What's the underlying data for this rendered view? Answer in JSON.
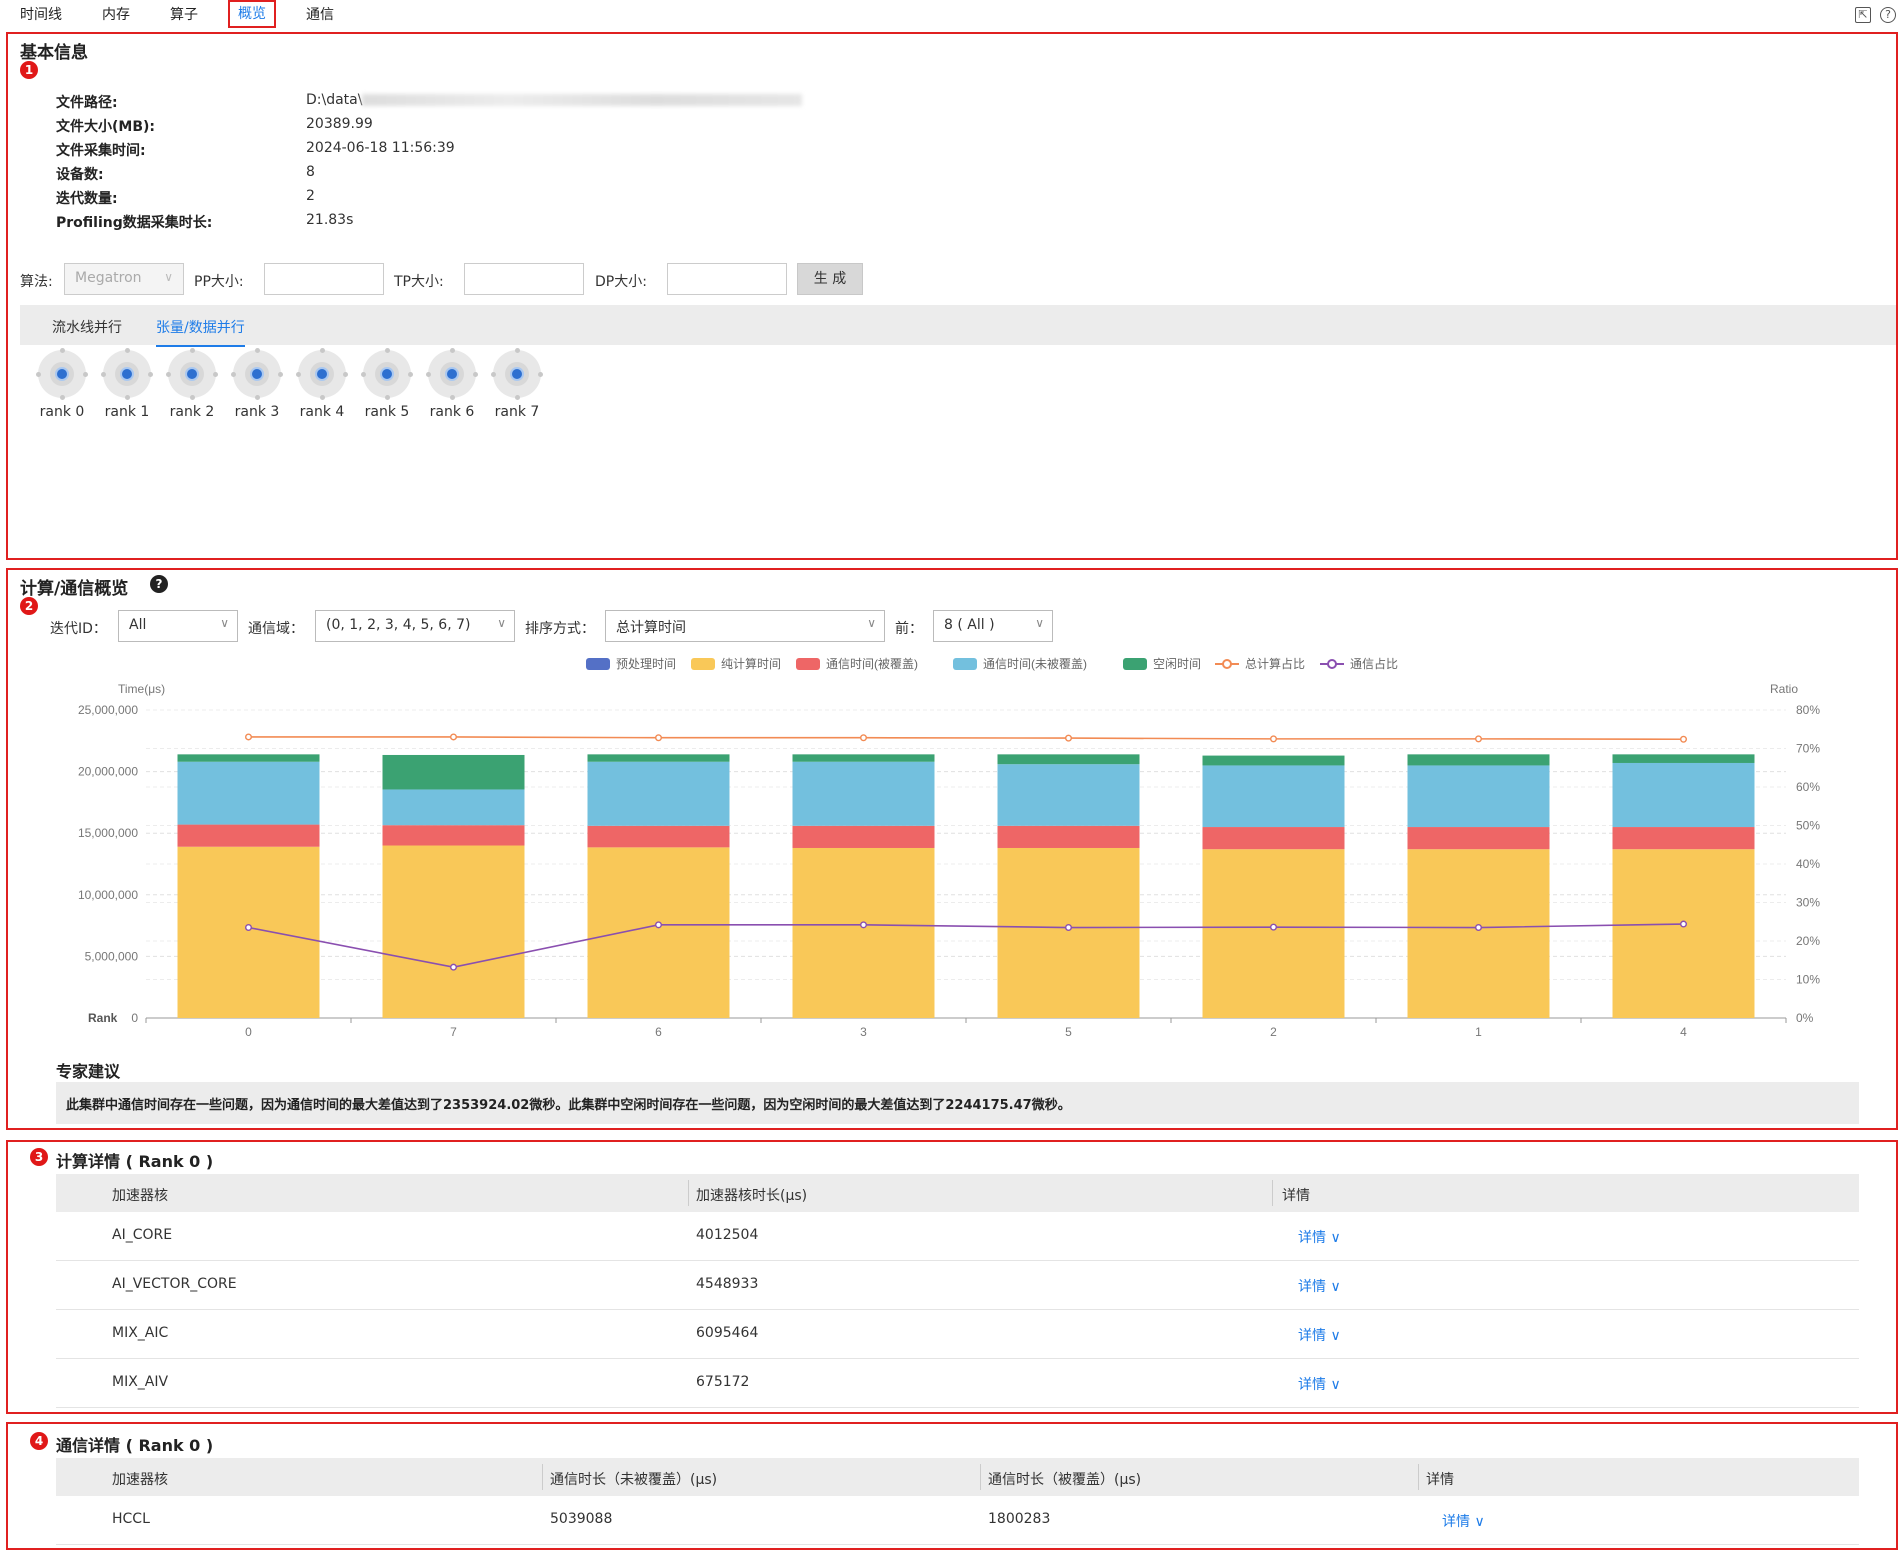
{
  "tabs": [
    "时间线",
    "内存",
    "算子",
    "概览",
    "通信"
  ],
  "active_tab": "概览",
  "icons": {
    "export": "export-icon",
    "help": "help-icon"
  },
  "section1": {
    "badge": "1",
    "title": "基本信息",
    "info": [
      {
        "label": "文件路径:",
        "value": "D:\\data\\"
      },
      {
        "label": "文件大小(MB):",
        "value": "20389.99"
      },
      {
        "label": "文件采集时间:",
        "value": "2024-06-18 11:56:39"
      },
      {
        "label": "设备数:",
        "value": "8"
      },
      {
        "label": "迭代数量:",
        "value": "2"
      },
      {
        "label": "Profiling数据采集时长:",
        "value": "21.83s"
      }
    ],
    "algo_label": "算法:",
    "algo_value": "Megatron",
    "pp_label": "PP大小:",
    "tp_label": "TP大小:",
    "dp_label": "DP大小:",
    "generate_label": "生 成",
    "subtabs": [
      "流水线并行",
      "张量/数据并行"
    ],
    "active_subtab": "张量/数据并行",
    "ranks": [
      "rank 0",
      "rank 1",
      "rank 2",
      "rank 3",
      "rank 4",
      "rank 5",
      "rank 6",
      "rank 7"
    ]
  },
  "section2": {
    "badge": "2",
    "title": "计算/通信概览",
    "iter_label": "迭代ID：",
    "iter_value": "All",
    "group_label": "通信域：",
    "group_value": "(0, 1, 2, 3, 4, 5, 6, 7)",
    "sort_label": "排序方式：",
    "sort_value": "总计算时间",
    "top_label": "前：",
    "top_value": "8 ( All )",
    "advice_title": "专家建议",
    "advice_text": "此集群中通信时间存在一些问题，因为通信时间的最大差值达到了2353924.02微秒。此集群中空闲时间存在一些问题，因为空闲时间的最大差值达到了2244175.47微秒。"
  },
  "chart_data": {
    "type": "bar",
    "stacked": true,
    "ylabel": "Time(μs)",
    "y2label": "Ratio",
    "xlabel": "Rank",
    "categories": [
      "0",
      "7",
      "6",
      "3",
      "5",
      "2",
      "1",
      "4"
    ],
    "ylim": [
      0,
      25000000
    ],
    "y_ticks": [
      "25,000,000",
      "20,000,000",
      "15,000,000",
      "10,000,000",
      "5,000,000",
      "0"
    ],
    "y2lim": [
      0,
      80
    ],
    "y2_ticks": [
      "80%",
      "70%",
      "60%",
      "50%",
      "40%",
      "30%",
      "20%",
      "10%",
      "0%"
    ],
    "legend_position": "top",
    "series": [
      {
        "name": "预处理时间",
        "kind": "bar",
        "color": "#5470c6",
        "values": [
          0,
          0,
          0,
          0,
          0,
          0,
          0,
          0
        ]
      },
      {
        "name": "纯计算时间",
        "kind": "bar",
        "color": "#f9c858",
        "values": [
          13900000,
          14000000,
          13850000,
          13800000,
          13800000,
          13700000,
          13700000,
          13700000
        ]
      },
      {
        "name": "通信时间(被覆盖)",
        "kind": "bar",
        "color": "#ee6666",
        "values": [
          1800000,
          1650000,
          1750000,
          1800000,
          1800000,
          1800000,
          1800000,
          1800000
        ]
      },
      {
        "name": "通信时间(未被覆盖)",
        "kind": "bar",
        "color": "#73c0de",
        "values": [
          5100000,
          2900000,
          5200000,
          5200000,
          5000000,
          5000000,
          5000000,
          5200000
        ]
      },
      {
        "name": "空闲时间",
        "kind": "bar",
        "color": "#3ba272",
        "values": [
          600000,
          2800000,
          600000,
          600000,
          800000,
          800000,
          900000,
          700000
        ]
      },
      {
        "name": "总计算占比",
        "kind": "line",
        "color": "#f28b54",
        "axis": "right",
        "values": [
          73,
          73,
          72.8,
          72.8,
          72.7,
          72.5,
          72.5,
          72.4
        ]
      },
      {
        "name": "通信占比",
        "kind": "line",
        "color": "#8a4fb0",
        "axis": "right",
        "values": [
          23.5,
          13.2,
          24.2,
          24.2,
          23.5,
          23.6,
          23.5,
          24.4
        ]
      }
    ]
  },
  "section3": {
    "badge": "3",
    "title": "计算详情 ( Rank 0 )",
    "headers": [
      "加速器核",
      "加速器核时长(μs)",
      "详情"
    ],
    "rows": [
      {
        "core": "AI_CORE",
        "duration": "4012504",
        "detail": "详情"
      },
      {
        "core": "AI_VECTOR_CORE",
        "duration": "4548933",
        "detail": "详情"
      },
      {
        "core": "MIX_AIC",
        "duration": "6095464",
        "detail": "详情"
      },
      {
        "core": "MIX_AIV",
        "duration": "675172",
        "detail": "详情"
      }
    ]
  },
  "section4": {
    "badge": "4",
    "title": "通信详情 ( Rank 0 )",
    "headers": [
      "加速器核",
      "通信时长（未被覆盖）(μs)",
      "通信时长（被覆盖）(μs)",
      "详情"
    ],
    "rows": [
      {
        "core": "HCCL",
        "uncovered": "5039088",
        "covered": "1800283",
        "detail": "详情"
      }
    ]
  }
}
